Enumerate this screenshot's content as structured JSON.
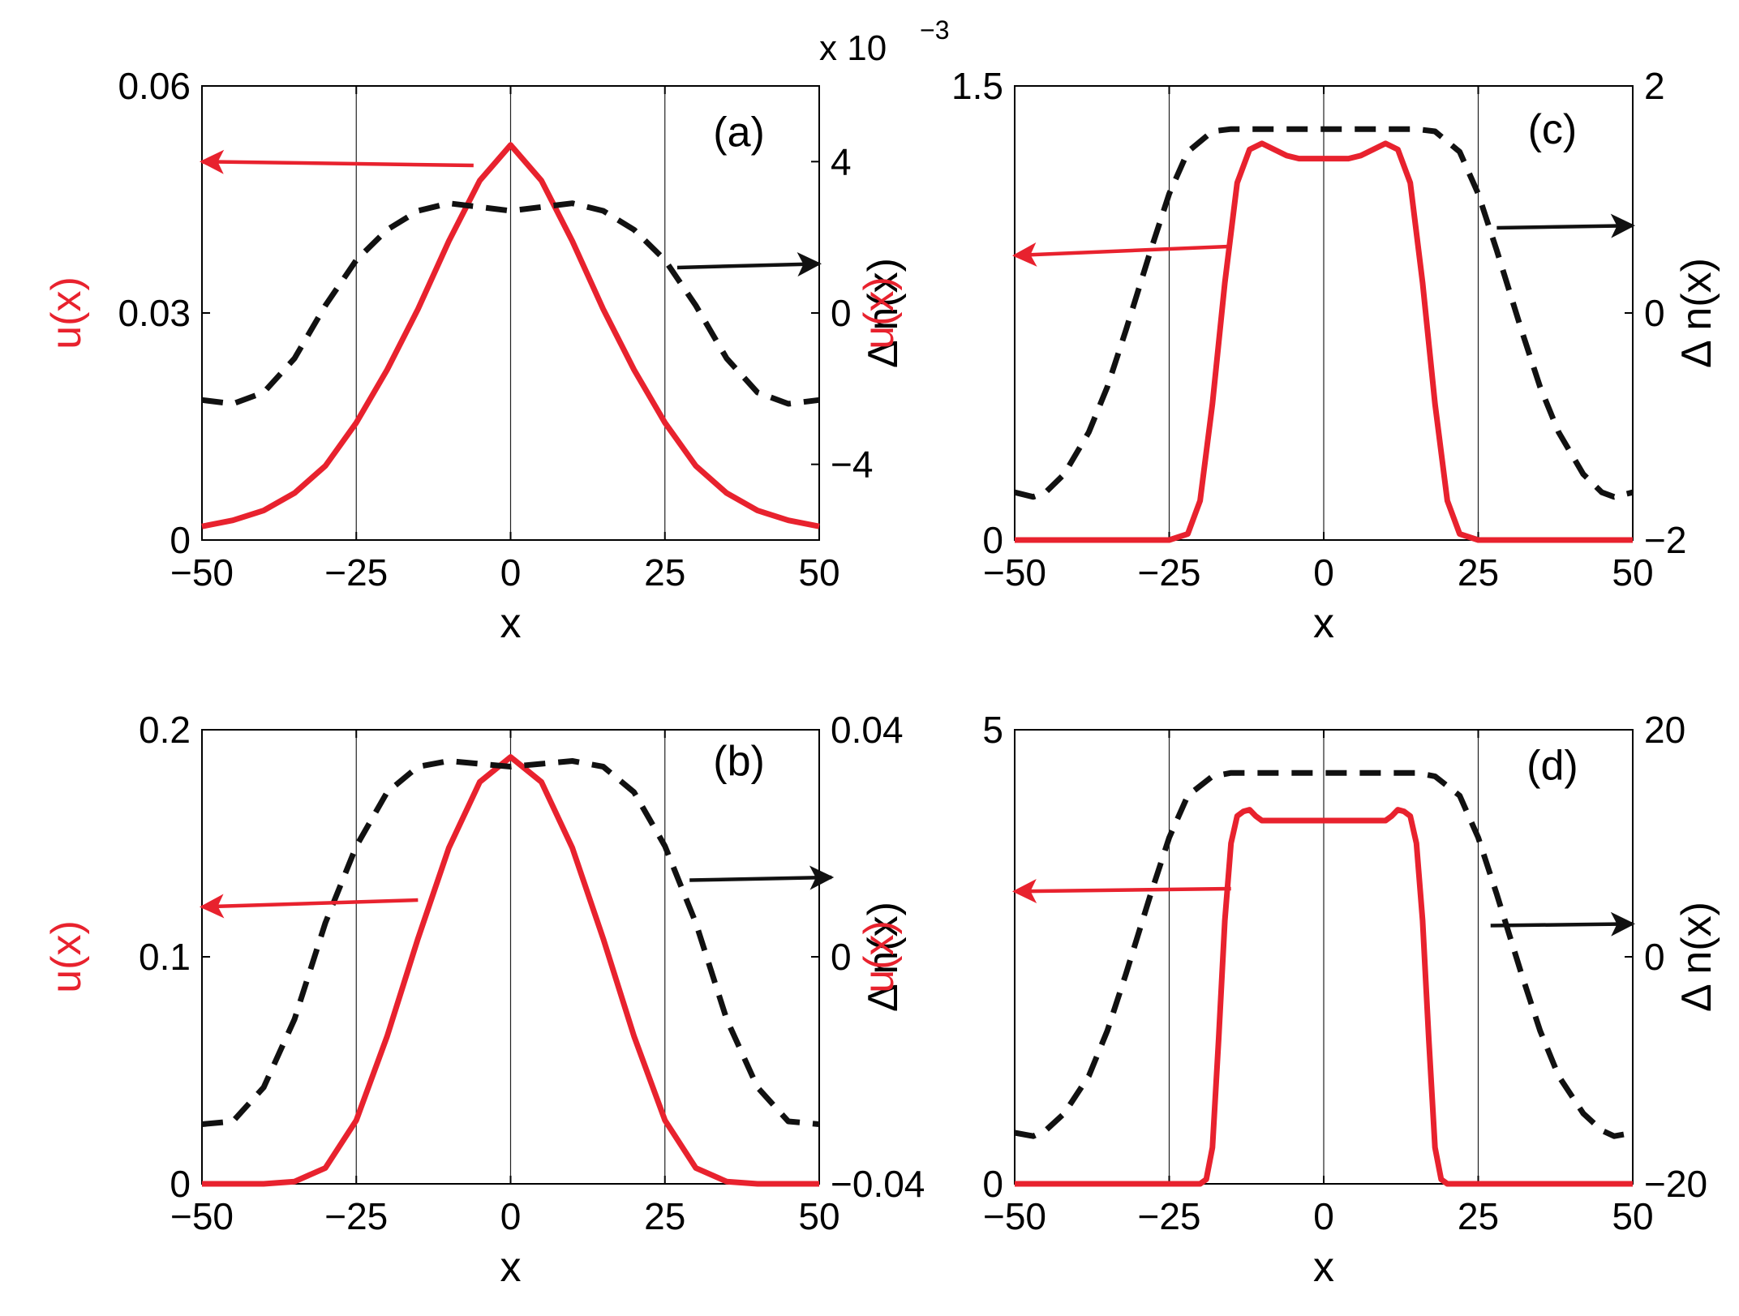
{
  "colors": {
    "u": "#e8222e",
    "dn": "#111111",
    "axis": "#000000",
    "grid": "#222222"
  },
  "chart_data": [
    {
      "id": "a",
      "type": "line",
      "panel_label": "(a)",
      "xlabel": "x",
      "ylabel_left": "u(x)",
      "ylabel_right": "Δ n(x)",
      "xlim": [
        -50,
        50
      ],
      "xticks": [
        "−50",
        "−25",
        "0",
        "25",
        "50"
      ],
      "xtick_values": [
        -50,
        -25,
        0,
        25,
        50
      ],
      "ylim_left": [
        0,
        0.06
      ],
      "yticks_left": [
        "0",
        "0.03",
        "0.06"
      ],
      "ytick_values_left": [
        0,
        0.03,
        0.06
      ],
      "ylim_right": [
        -0.006,
        0.006
      ],
      "yticks_right": [
        "−4",
        "0",
        "4"
      ],
      "ytick_values_right": [
        -0.004,
        0,
        0.004
      ],
      "right_exponent": "x 10",
      "right_exponent_power": "−3",
      "vgrid": [
        -25,
        0,
        25
      ],
      "series": [
        {
          "name": "u(x)",
          "axis": "left",
          "style": "solid",
          "x": [
            -50,
            -45,
            -40,
            -35,
            -30,
            -25,
            -20,
            -15,
            -10,
            -5,
            0,
            5,
            10,
            15,
            20,
            25,
            30,
            35,
            40,
            45,
            50
          ],
          "y": [
            0.0018,
            0.0026,
            0.0039,
            0.0062,
            0.0098,
            0.0155,
            0.0225,
            0.0305,
            0.0395,
            0.0475,
            0.0522,
            0.0475,
            0.0395,
            0.0305,
            0.0225,
            0.0155,
            0.0098,
            0.0062,
            0.0039,
            0.0026,
            0.0018
          ]
        },
        {
          "name": "Δ n(x)",
          "axis": "right",
          "style": "dashed",
          "x": [
            -50,
            -45,
            -40,
            -35,
            -30,
            -25,
            -20,
            -15,
            -10,
            -5,
            0,
            5,
            10,
            15,
            20,
            25,
            30,
            35,
            40,
            45,
            50
          ],
          "y": [
            -0.0023,
            -0.0024,
            -0.0021,
            -0.0012,
            0.0002,
            0.0014,
            0.0022,
            0.0027,
            0.0029,
            0.0028,
            0.0027,
            0.0028,
            0.0029,
            0.0027,
            0.0022,
            0.0014,
            0.0002,
            -0.0012,
            -0.0021,
            -0.0024,
            -0.0023
          ]
        }
      ],
      "arrows": [
        {
          "target": "left",
          "from": [
            -6,
            0.0495
          ],
          "to": [
            -50,
            0.05
          ]
        },
        {
          "target": "right",
          "from": [
            27,
            0.0012
          ],
          "to": [
            50,
            0.0013
          ]
        }
      ],
      "label_pos": [
        37,
        0.052
      ]
    },
    {
      "id": "b",
      "type": "line",
      "panel_label": "(b)",
      "xlabel": "x",
      "ylabel_left": "u(x)",
      "ylabel_right": "Δ n(x)",
      "xlim": [
        -50,
        50
      ],
      "xticks": [
        "−50",
        "−25",
        "0",
        "25",
        "50"
      ],
      "xtick_values": [
        -50,
        -25,
        0,
        25,
        50
      ],
      "ylim_left": [
        0,
        0.2
      ],
      "yticks_left": [
        "0",
        "0.1",
        "0.2"
      ],
      "ytick_values_left": [
        0,
        0.1,
        0.2
      ],
      "ylim_right": [
        -0.04,
        0.04
      ],
      "yticks_right": [
        "−0.04",
        "0",
        "0.04"
      ],
      "ytick_values_right": [
        -0.04,
        0,
        0.04
      ],
      "vgrid": [
        -25,
        0,
        25
      ],
      "series": [
        {
          "name": "u(x)",
          "axis": "left",
          "style": "solid",
          "x": [
            -50,
            -40,
            -35,
            -30,
            -25,
            -20,
            -15,
            -10,
            -5,
            0,
            5,
            10,
            15,
            20,
            25,
            30,
            35,
            40,
            50
          ],
          "y": [
            0,
            0,
            0.001,
            0.007,
            0.028,
            0.065,
            0.108,
            0.148,
            0.177,
            0.188,
            0.177,
            0.148,
            0.108,
            0.065,
            0.028,
            0.007,
            0.001,
            0,
            0
          ]
        },
        {
          "name": "Δ n(x)",
          "axis": "right",
          "style": "dashed",
          "x": [
            -50,
            -45,
            -40,
            -35,
            -30,
            -25,
            -20,
            -15,
            -10,
            -5,
            0,
            5,
            10,
            15,
            20,
            25,
            30,
            35,
            40,
            45,
            50
          ],
          "y": [
            -0.0295,
            -0.029,
            -0.023,
            -0.011,
            0.006,
            0.0195,
            0.029,
            0.0335,
            0.0345,
            0.034,
            0.0335,
            0.034,
            0.0345,
            0.0335,
            0.029,
            0.0195,
            0.006,
            -0.011,
            -0.023,
            -0.029,
            -0.0295
          ]
        }
      ],
      "arrows": [
        {
          "target": "left",
          "from": [
            -15,
            0.125
          ],
          "to": [
            -50,
            0.122
          ]
        },
        {
          "target": "right",
          "from": [
            29,
            0.0135
          ],
          "to": [
            52,
            0.014
          ]
        }
      ],
      "label_pos": [
        37,
        0.18
      ]
    },
    {
      "id": "c",
      "type": "line",
      "panel_label": "(c)",
      "xlabel": "x",
      "ylabel_left": "u(x)",
      "ylabel_right": "Δ n(x)",
      "xlim": [
        -50,
        50
      ],
      "xticks": [
        "−50",
        "−25",
        "0",
        "25",
        "50"
      ],
      "xtick_values": [
        -50,
        -25,
        0,
        25,
        50
      ],
      "ylim_left": [
        0,
        1.5
      ],
      "yticks_left": [
        "0",
        "1.5"
      ],
      "ytick_values_left": [
        0,
        1.5
      ],
      "ylim_right": [
        -2,
        2
      ],
      "yticks_right": [
        "−2",
        "0",
        "2"
      ],
      "ytick_values_right": [
        -2,
        0,
        2
      ],
      "vgrid": [
        -25,
        0,
        25
      ],
      "series": [
        {
          "name": "u(x)",
          "axis": "left",
          "style": "solid",
          "x": [
            -50,
            -25,
            -22,
            -20,
            -18,
            -16,
            -14,
            -12,
            -10,
            -8,
            -6,
            -4,
            0,
            4,
            6,
            8,
            10,
            12,
            14,
            16,
            18,
            20,
            22,
            25,
            50
          ],
          "y": [
            0,
            0,
            0.02,
            0.13,
            0.45,
            0.85,
            1.18,
            1.29,
            1.31,
            1.29,
            1.27,
            1.26,
            1.26,
            1.26,
            1.27,
            1.29,
            1.31,
            1.29,
            1.18,
            0.85,
            0.45,
            0.13,
            0.02,
            0,
            0
          ]
        },
        {
          "name": "Δ n(x)",
          "axis": "right",
          "style": "dashed",
          "x": [
            -50,
            -47,
            -45,
            -42,
            -38,
            -35,
            -32,
            -28,
            -25,
            -22,
            -18,
            -15,
            0,
            15,
            18,
            22,
            25,
            28,
            32,
            35,
            38,
            42,
            45,
            47,
            50
          ],
          "y": [
            -1.58,
            -1.62,
            -1.58,
            -1.42,
            -1.05,
            -0.65,
            -0.15,
            0.55,
            1.05,
            1.42,
            1.6,
            1.62,
            1.62,
            1.62,
            1.6,
            1.42,
            1.05,
            0.55,
            -0.15,
            -0.65,
            -1.05,
            -1.42,
            -1.58,
            -1.62,
            -1.58
          ]
        }
      ],
      "arrows": [
        {
          "target": "left",
          "from": [
            -15,
            0.97
          ],
          "to": [
            -50,
            0.94
          ]
        },
        {
          "target": "right",
          "from": [
            28,
            0.75
          ],
          "to": [
            50,
            0.77
          ]
        }
      ],
      "label_pos": [
        37,
        1.31
      ]
    },
    {
      "id": "d",
      "type": "line",
      "panel_label": "(d)",
      "xlabel": "x",
      "ylabel_left": "u(x)",
      "ylabel_right": "Δ n(x)",
      "xlim": [
        -50,
        50
      ],
      "xticks": [
        "−50",
        "−25",
        "0",
        "25",
        "50"
      ],
      "xtick_values": [
        -50,
        -25,
        0,
        25,
        50
      ],
      "ylim_left": [
        0,
        5
      ],
      "yticks_left": [
        "0",
        "5"
      ],
      "ytick_values_left": [
        0,
        5
      ],
      "ylim_right": [
        -20,
        20
      ],
      "yticks_right": [
        "−20",
        "0",
        "20"
      ],
      "ytick_values_right": [
        -20,
        0,
        20
      ],
      "vgrid": [
        -25,
        0,
        25
      ],
      "series": [
        {
          "name": "u(x)",
          "axis": "left",
          "style": "solid",
          "x": [
            -50,
            -20,
            -19,
            -18,
            -17,
            -16,
            -15,
            -14,
            -13,
            -12,
            -11,
            -10,
            -8,
            0,
            8,
            10,
            11,
            12,
            13,
            14,
            15,
            16,
            17,
            18,
            19,
            20,
            50
          ],
          "y": [
            0,
            0,
            0.05,
            0.4,
            1.6,
            2.9,
            3.75,
            4.05,
            4.1,
            4.12,
            4.05,
            4.0,
            4.0,
            4.0,
            4.0,
            4.0,
            4.05,
            4.12,
            4.1,
            4.05,
            3.75,
            2.9,
            1.6,
            0.4,
            0.05,
            0,
            0
          ]
        },
        {
          "name": "Δ n(x)",
          "axis": "right",
          "style": "dashed",
          "x": [
            -50,
            -47,
            -45,
            -42,
            -38,
            -35,
            -32,
            -28,
            -25,
            -22,
            -18,
            -15,
            0,
            15,
            18,
            22,
            25,
            28,
            32,
            35,
            38,
            42,
            45,
            47,
            50
          ],
          "y": [
            -15.5,
            -15.8,
            -15.3,
            -13.8,
            -10.5,
            -6.5,
            -1.5,
            5.5,
            10.5,
            14.2,
            15.9,
            16.2,
            16.2,
            16.2,
            15.9,
            14.2,
            10.5,
            5.5,
            -1.5,
            -6.5,
            -10.5,
            -13.8,
            -15.3,
            -15.8,
            -15.5
          ]
        }
      ],
      "arrows": [
        {
          "target": "left",
          "from": [
            -15,
            3.25
          ],
          "to": [
            -50,
            3.22
          ]
        },
        {
          "target": "right",
          "from": [
            27,
            2.75
          ],
          "to": [
            50,
            2.9
          ]
        }
      ],
      "label_pos": [
        37,
        4.45
      ]
    }
  ]
}
